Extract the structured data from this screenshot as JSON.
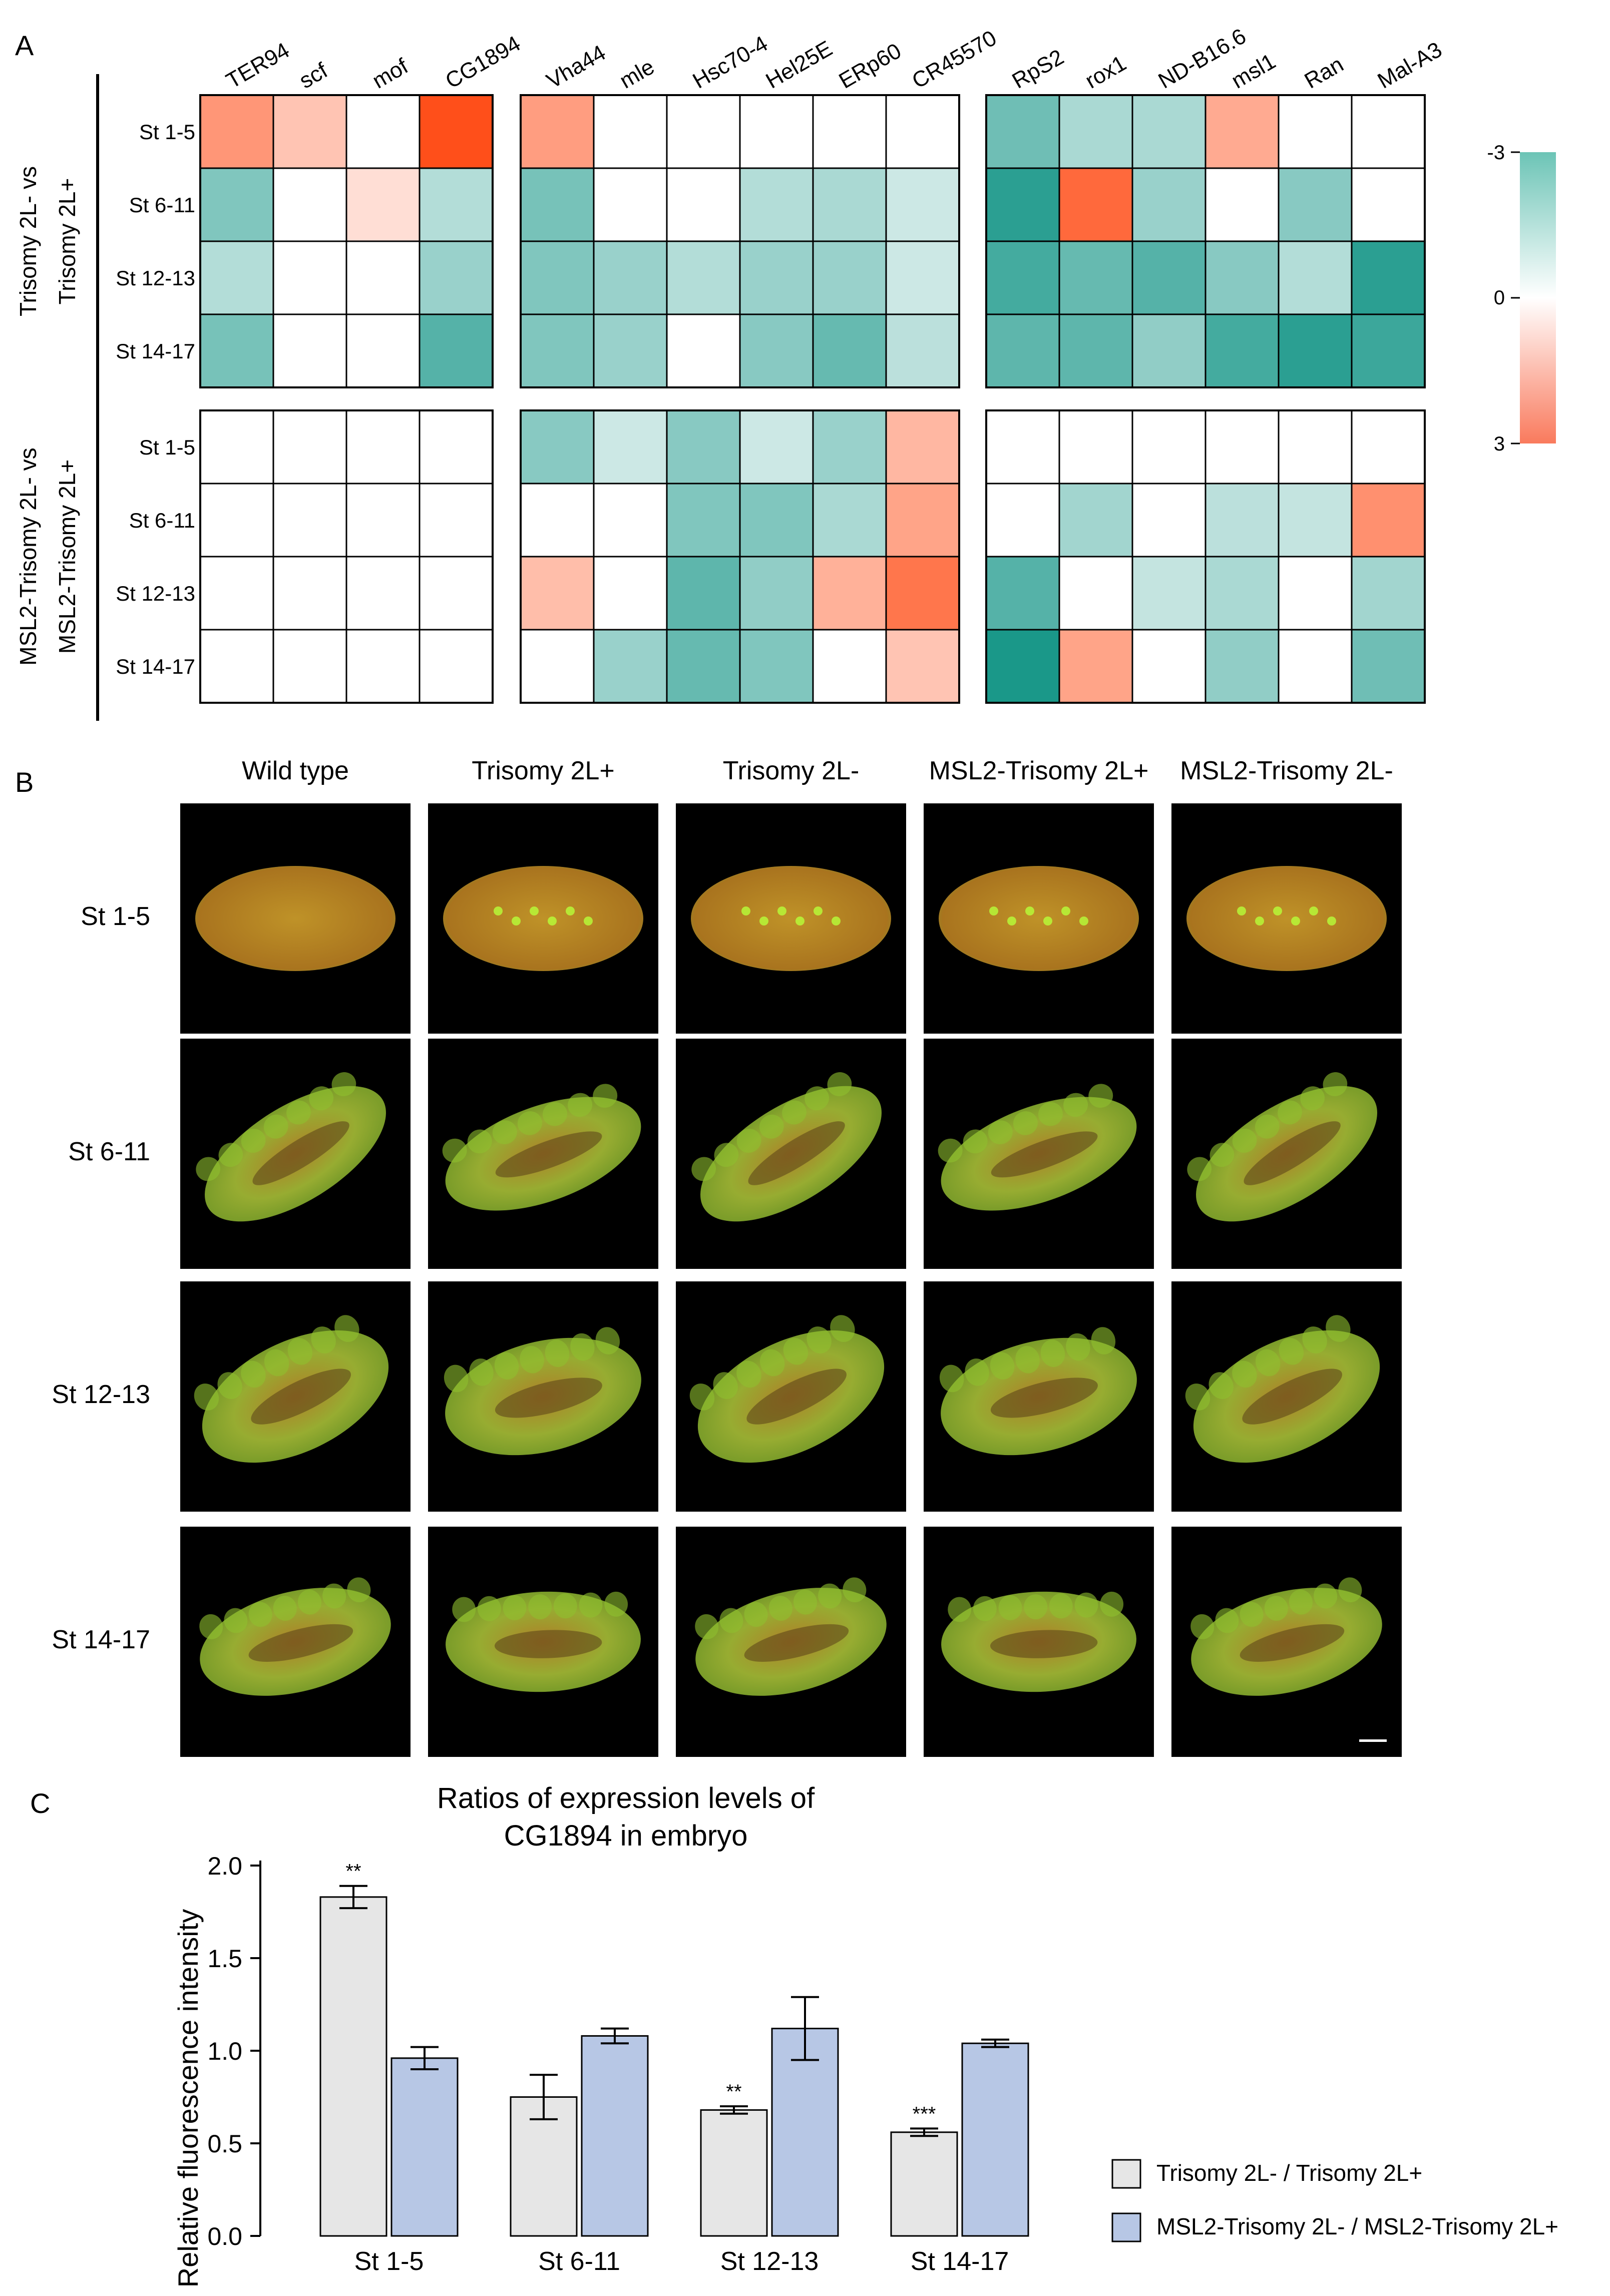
{
  "panel_labels": {
    "a": "A",
    "b": "B",
    "c": "C"
  },
  "heatmap": {
    "genes": [
      [
        "TER94",
        "scf",
        "mof",
        "CG1894"
      ],
      [
        "Vha44",
        "mle",
        "Hsc70-4",
        "Hel25E",
        "ERp60",
        "CR45570"
      ],
      [
        "RpS2",
        "rox1",
        "ND-B16.6",
        "msl1",
        "Ran",
        "Mal-A3"
      ]
    ],
    "stages": [
      "St 1-5",
      "St 6-11",
      "St 12-13",
      "St 14-17"
    ],
    "comparisons": [
      {
        "line1": "Trisomy 2L- vs",
        "line2": "Trisomy  2L+"
      },
      {
        "line1": "MSL2-Trisomy 2L- vs",
        "line2": "MSL2-Trisomy  2L+"
      }
    ],
    "values": [
      [
        [
          [
            1.6,
            0.9,
            0,
            2.7
          ],
          [
            -1.5,
            0,
            0.5,
            -0.9
          ],
          [
            -0.9,
            0,
            0,
            -1.2
          ],
          [
            -1.6,
            0,
            0,
            -2.0
          ]
        ],
        [
          [
            1.5,
            0,
            0,
            0,
            0,
            0
          ],
          [
            -1.6,
            0,
            0,
            -0.9,
            -1.0,
            -0.6
          ],
          [
            -1.5,
            -1.2,
            -0.9,
            -1.2,
            -1.2,
            -0.6
          ],
          [
            -1.5,
            -1.2,
            0,
            -1.4,
            -1.8,
            -0.8
          ]
        ],
        [
          [
            -1.7,
            -1.0,
            -1.0,
            1.3,
            0,
            0
          ],
          [
            -2.5,
            2.3,
            -1.2,
            0,
            -1.4,
            0
          ],
          [
            -2.2,
            -1.8,
            -2.0,
            -1.4,
            -0.9,
            -2.5
          ],
          [
            -1.9,
            -1.9,
            -1.3,
            -2.2,
            -2.5,
            -2.3
          ]
        ]
      ],
      [
        [
          [
            0,
            0,
            0,
            0
          ],
          [
            0,
            0,
            0,
            0
          ],
          [
            0,
            0,
            0,
            0
          ],
          [
            0,
            0,
            0,
            0
          ]
        ],
        [
          [
            -1.4,
            -0.6,
            -1.4,
            -0.6,
            -1.2,
            1.1
          ],
          [
            0,
            0,
            -1.5,
            -1.5,
            -1.0,
            1.4
          ],
          [
            1.0,
            0,
            -1.9,
            -1.3,
            1.2,
            2.1
          ],
          [
            0,
            -1.2,
            -1.8,
            -1.5,
            0,
            0.9
          ]
        ],
        [
          [
            0,
            0,
            0,
            0,
            0,
            0
          ],
          [
            0,
            -1.1,
            0,
            -0.8,
            -0.7,
            1.7
          ],
          [
            -2.0,
            0,
            -0.7,
            -1.0,
            0,
            -1.1
          ],
          [
            -2.7,
            1.4,
            0,
            -1.3,
            0,
            -1.7
          ]
        ]
      ]
    ],
    "colorbar": {
      "min": 3,
      "max": -3,
      "labels": [
        "-3",
        "0",
        "3"
      ],
      "low_color": "#f97a5d",
      "mid_color": "#ffffff",
      "high_color": "#6cc4b6"
    }
  },
  "embryos": {
    "columns": [
      "Wild type",
      "Trisomy 2L+",
      "Trisomy 2L-",
      "MSL2-Trisomy 2L+",
      "MSL2-Trisomy 2L-"
    ],
    "rows": [
      "St 1-5",
      "St 6-11",
      "St 12-13",
      "St 14-17"
    ]
  },
  "chart_data": {
    "type": "bar",
    "title_line1": "Ratios of expression levels of",
    "title_line2": "CG1894 in embryo",
    "ylabel": "Relative fluorescence intensity",
    "xlabel": "",
    "categories": [
      "St 1-5",
      "St 6-11",
      "St 12-13",
      "St 14-17"
    ],
    "ylim": [
      0,
      2.0
    ],
    "yticks": [
      "0.0",
      "0.5",
      "1.0",
      "1.5",
      "2.0"
    ],
    "series": [
      {
        "name": "Trisomy 2L- / Trisomy 2L+",
        "color": "#e6e6e6",
        "values": [
          1.83,
          0.75,
          0.68,
          0.56
        ],
        "errors": [
          0.06,
          0.12,
          0.02,
          0.02
        ],
        "significance": [
          "**",
          "",
          "**",
          "***"
        ]
      },
      {
        "name": "MSL2-Trisomy 2L- / MSL2-Trisomy 2L+",
        "color": "#b7c7e5",
        "values": [
          0.96,
          1.08,
          1.12,
          1.04
        ],
        "errors": [
          0.06,
          0.04,
          0.17,
          0.02
        ],
        "significance": [
          "",
          "",
          "",
          ""
        ]
      }
    ]
  }
}
